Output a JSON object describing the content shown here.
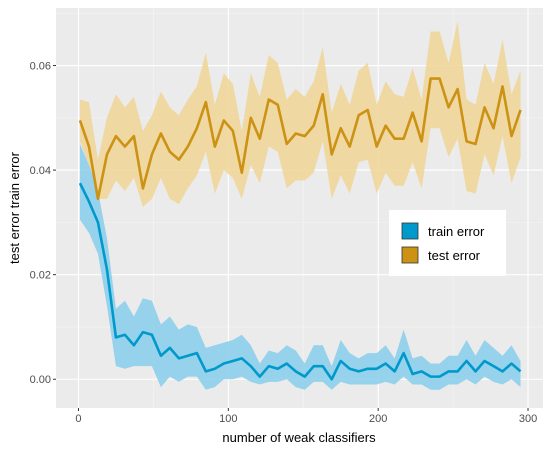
{
  "chart_data": {
    "type": "line",
    "xlabel": "number of weak classifiers",
    "ylabel": "test error train error",
    "xlim": [
      -15,
      310
    ],
    "ylim": [
      -0.0055,
      0.071
    ],
    "x_ticks": [
      0,
      100,
      200,
      300
    ],
    "x_tick_labels": [
      "0",
      "100",
      "200",
      "300"
    ],
    "y_ticks": [
      0.0,
      0.02,
      0.04,
      0.06
    ],
    "y_tick_labels": [
      "0.00",
      "0.02",
      "0.04",
      "0.06"
    ],
    "grid": true,
    "legend_position": "right",
    "x": [
      1,
      7,
      13,
      19,
      25,
      31,
      37,
      43,
      49,
      55,
      61,
      67,
      73,
      79,
      85,
      91,
      97,
      103,
      109,
      115,
      121,
      127,
      133,
      139,
      145,
      151,
      157,
      163,
      169,
      175,
      181,
      187,
      193,
      199,
      205,
      211,
      217,
      223,
      229,
      235,
      241,
      247,
      253,
      259,
      265,
      271,
      277,
      283,
      289,
      295
    ],
    "series": [
      {
        "name": "train error",
        "color": "#0099cc",
        "band_color": "#87ceeb",
        "values": [
          0.0375,
          0.034,
          0.03,
          0.021,
          0.008,
          0.0085,
          0.0065,
          0.009,
          0.0085,
          0.0045,
          0.006,
          0.004,
          0.0045,
          0.005,
          0.0015,
          0.002,
          0.003,
          0.0035,
          0.004,
          0.0025,
          0.0005,
          0.0025,
          0.002,
          0.003,
          0.0015,
          0.0005,
          0.0025,
          0.0025,
          0.0,
          0.0035,
          0.002,
          0.0015,
          0.002,
          0.002,
          0.003,
          0.0015,
          0.005,
          0.001,
          0.0015,
          0.0005,
          0.0005,
          0.0015,
          0.0015,
          0.0035,
          0.0015,
          0.0035,
          0.0025,
          0.0015,
          0.003,
          0.0015
        ],
        "lower": [
          0.0305,
          0.028,
          0.024,
          0.014,
          0.0025,
          0.002,
          0.0025,
          0.0025,
          0.0025,
          -0.0015,
          0.0005,
          -0.0005,
          0.0005,
          0.0005,
          -0.002,
          -0.0015,
          0.0,
          0.0,
          0.0005,
          -0.0005,
          -0.001,
          -0.0005,
          -0.0005,
          0.0,
          -0.0015,
          -0.002,
          -0.0005,
          -0.0005,
          -0.002,
          -0.0005,
          -0.001,
          -0.001,
          -0.001,
          -0.001,
          -0.0005,
          -0.001,
          0.0005,
          -0.001,
          -0.001,
          -0.002,
          -0.002,
          -0.001,
          -0.001,
          0.0,
          -0.001,
          0.0005,
          -0.0005,
          -0.001,
          0.0,
          -0.0015
        ],
        "upper": [
          0.045,
          0.041,
          0.036,
          0.027,
          0.0135,
          0.015,
          0.012,
          0.0155,
          0.015,
          0.0105,
          0.012,
          0.0095,
          0.0105,
          0.01,
          0.006,
          0.0065,
          0.007,
          0.0075,
          0.0085,
          0.0065,
          0.003,
          0.0055,
          0.005,
          0.0065,
          0.0055,
          0.003,
          0.0065,
          0.0065,
          0.0025,
          0.0075,
          0.005,
          0.004,
          0.005,
          0.005,
          0.0065,
          0.004,
          0.0095,
          0.004,
          0.0045,
          0.003,
          0.003,
          0.0045,
          0.0045,
          0.0075,
          0.0045,
          0.0075,
          0.006,
          0.0045,
          0.0065,
          0.0035
        ]
      },
      {
        "name": "test error",
        "color": "#cc9214",
        "band_color": "#f0d595",
        "values": [
          0.0495,
          0.0445,
          0.0345,
          0.043,
          0.0465,
          0.0445,
          0.0465,
          0.0365,
          0.043,
          0.047,
          0.0435,
          0.042,
          0.0445,
          0.048,
          0.053,
          0.0445,
          0.0495,
          0.0475,
          0.0395,
          0.05,
          0.046,
          0.0535,
          0.0525,
          0.045,
          0.047,
          0.0465,
          0.0485,
          0.0545,
          0.043,
          0.048,
          0.0445,
          0.0505,
          0.0515,
          0.0445,
          0.0485,
          0.046,
          0.046,
          0.051,
          0.0455,
          0.0575,
          0.0575,
          0.052,
          0.0555,
          0.0455,
          0.045,
          0.052,
          0.048,
          0.056,
          0.0465,
          0.0515
        ],
        "lower": [
          0.0455,
          0.041,
          0.0345,
          0.0345,
          0.038,
          0.036,
          0.0385,
          0.033,
          0.0345,
          0.0385,
          0.0345,
          0.0335,
          0.0365,
          0.039,
          0.0435,
          0.0355,
          0.04,
          0.0385,
          0.0345,
          0.041,
          0.0375,
          0.0445,
          0.0435,
          0.0365,
          0.038,
          0.038,
          0.0395,
          0.0455,
          0.0345,
          0.039,
          0.0355,
          0.0415,
          0.042,
          0.0355,
          0.0395,
          0.037,
          0.037,
          0.0415,
          0.0365,
          0.048,
          0.048,
          0.0425,
          0.046,
          0.036,
          0.0355,
          0.043,
          0.039,
          0.0465,
          0.0375,
          0.0425
        ],
        "upper": [
          0.0535,
          0.053,
          0.042,
          0.05,
          0.0545,
          0.052,
          0.054,
          0.0475,
          0.0505,
          0.055,
          0.052,
          0.0505,
          0.0535,
          0.056,
          0.0625,
          0.0525,
          0.0585,
          0.0565,
          0.0475,
          0.0585,
          0.054,
          0.062,
          0.0605,
          0.0535,
          0.0555,
          0.054,
          0.057,
          0.0635,
          0.051,
          0.0565,
          0.0525,
          0.059,
          0.0605,
          0.0525,
          0.057,
          0.0545,
          0.054,
          0.0595,
          0.0535,
          0.0665,
          0.0665,
          0.0605,
          0.0685,
          0.0535,
          0.0525,
          0.0605,
          0.0565,
          0.065,
          0.0545,
          0.059
        ]
      }
    ]
  }
}
